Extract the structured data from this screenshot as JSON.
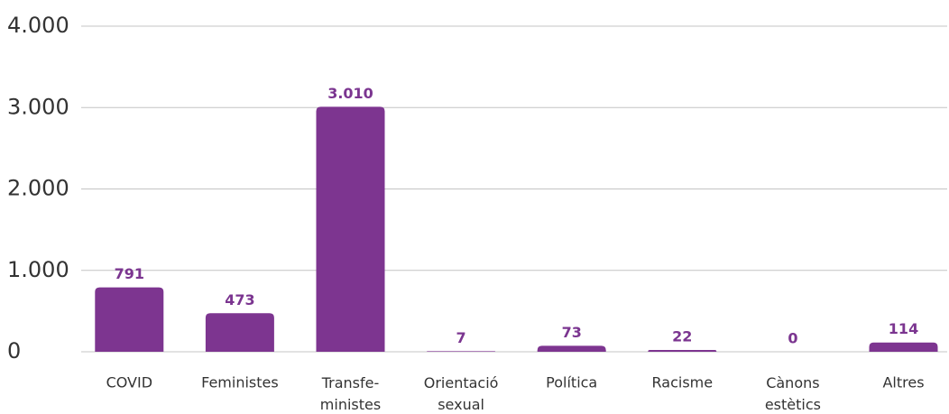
{
  "chart_data": {
    "type": "bar",
    "categories": [
      "COVID",
      "Feministes",
      "Transfe-\nministes",
      "Orientació\nsexual",
      "Política",
      "Racisme",
      "Cànons\nestètics",
      "Altres"
    ],
    "values": [
      791,
      473,
      3010,
      7,
      73,
      22,
      0,
      114
    ],
    "value_labels": [
      "791",
      "473",
      "3.010",
      "7",
      "73",
      "22",
      "0",
      "114"
    ],
    "color": "#7d3590",
    "ylim": [
      0,
      4000
    ],
    "yticks": [
      0,
      {
        "value": 1000,
        "label": "1.000"
      },
      {
        "value": 2000,
        "label": "2.000"
      },
      {
        "value": 3000,
        "label": "3.000"
      },
      {
        "value": 4000,
        "label": "4.000"
      }
    ],
    "grid": true
  }
}
